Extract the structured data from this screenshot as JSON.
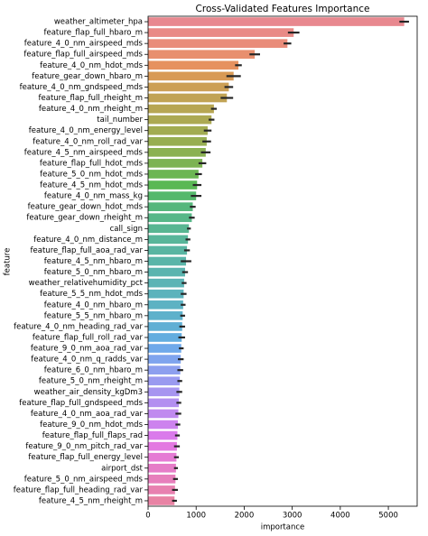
{
  "chart_data": {
    "type": "barh",
    "title": "Cross-Validated Features Importance",
    "x_label": "importance",
    "y_label": "feature",
    "categories": [
      "weather_altimeter_hpa",
      "feature_flap_full_hbaro_m",
      "feature_4_0_nm_airspeed_mds",
      "feature_flap_full_airspeed_mds",
      "feature_4_0_nm_hdot_mds",
      "feature_gear_down_hbaro_m",
      "feature_4_0_nm_gndspeed_mds",
      "feature_flap_full_rheight_m",
      "feature_4_0_nm_rheight_m",
      "tail_number",
      "feature_4_0_nm_energy_level",
      "feature_4_0_nm_roll_rad_var",
      "feature_4_5_nm_airspeed_mds",
      "feature_flap_full_hdot_mds",
      "feature_5_0_nm_hdot_mds",
      "feature_4_5_nm_hdot_mds",
      "feature_4_0_nm_mass_kg",
      "feature_gear_down_hdot_mds",
      "feature_gear_down_rheight_m",
      "call_sign",
      "feature_4_0_nm_distance_m",
      "feature_flap_full_aoa_rad_var",
      "feature_4_5_nm_hbaro_m",
      "feature_5_0_nm_hbaro_m",
      "weather_relativehumidity_pct",
      "feature_5_5_nm_hdot_mds",
      "feature_4_0_nm_hbaro_m",
      "feature_5_5_nm_hbaro_m",
      "feature_4_0_nm_heading_rad_var",
      "feature_flap_full_roll_rad_var",
      "feature_9_0_nm_aoa_rad_var",
      "feature_4_0_nm_q_radds_var",
      "feature_6_0_nm_hbaro_m",
      "feature_5_0_nm_rheight_m",
      "weather_air_density_kgDm3",
      "feature_flap_full_gndspeed_mds",
      "feature_4_0_nm_aoa_rad_var",
      "feature_9_0_nm_hdot_mds",
      "feature_flap_full_flaps_rad",
      "feature_9_0_nm_pitch_rad_var",
      "feature_flap_full_energy_level",
      "airport_dst",
      "feature_5_0_nm_airspeed_mds",
      "feature_flap_full_heading_rad_var",
      "feature_4_5_nm_rheight_m"
    ],
    "values": [
      5330,
      3030,
      2900,
      2220,
      1880,
      1780,
      1680,
      1640,
      1370,
      1320,
      1240,
      1220,
      1200,
      1130,
      1050,
      1020,
      1000,
      930,
      910,
      850,
      830,
      810,
      790,
      770,
      750,
      740,
      730,
      720,
      710,
      700,
      690,
      680,
      670,
      660,
      650,
      640,
      630,
      620,
      610,
      600,
      590,
      580,
      570,
      560,
      550
    ],
    "errors": [
      100,
      120,
      80,
      110,
      70,
      150,
      90,
      130,
      60,
      60,
      80,
      90,
      100,
      80,
      70,
      90,
      110,
      60,
      60,
      40,
      50,
      60,
      110,
      60,
      50,
      60,
      50,
      50,
      60,
      70,
      50,
      60,
      60,
      50,
      60,
      50,
      60,
      50,
      50,
      60,
      50,
      40,
      50,
      60,
      50
    ],
    "colors": [
      "#e8888f",
      "#e98a86",
      "#e98c7a",
      "#e88f6e",
      "#e6915f",
      "#d89a56",
      "#cc9f55",
      "#c1a354",
      "#b7a653",
      "#aca953",
      "#a2ac52",
      "#97ae52",
      "#8bb152",
      "#7cb353",
      "#6cb653",
      "#5ab855",
      "#55b86c",
      "#56b77c",
      "#57b788",
      "#58b692",
      "#58b69a",
      "#59b5a2",
      "#5ab5a9",
      "#5ab4af",
      "#5bb4b5",
      "#5cb3bc",
      "#5db2c3",
      "#5eb1cb",
      "#60afd4",
      "#63addf",
      "#6fa9ea",
      "#7fa4ee",
      "#8d9fef",
      "#9a9af0",
      "#a795f0",
      "#b38ff0",
      "#c089ef",
      "#cd82ee",
      "#da7aeb",
      "#e379e1",
      "#e57bd4",
      "#e67dc8",
      "#e77fbc",
      "#e881b0",
      "#e883a4"
    ],
    "error_color": "#262626",
    "xlim": [
      0,
      5600
    ],
    "xticks": [
      0,
      1000,
      2000,
      3000,
      4000,
      5000
    ]
  }
}
